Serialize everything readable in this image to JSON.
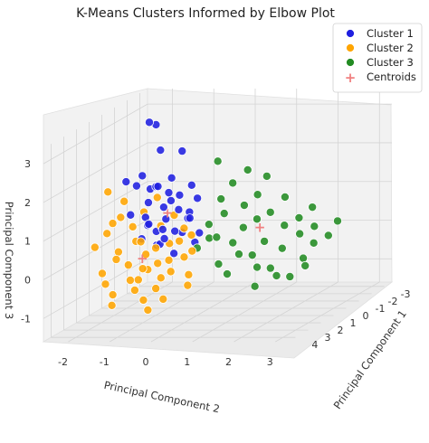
{
  "chart_data": {
    "type": "scatter",
    "title": "K-Means Clusters Informed by Elbow Plot",
    "xlabel": "Principal Component 2",
    "ylabel": "Principal Component 1",
    "zlabel": "Principal Component 3",
    "axis_x_ticks": [
      "-2",
      "-1",
      "0",
      "1",
      "2",
      "3"
    ],
    "axis_y_ticks": [
      "-3",
      "-2",
      "-1",
      "0",
      "1",
      "2",
      "3",
      "4"
    ],
    "axis_z_ticks": [
      "-1",
      "0",
      "1",
      "2",
      "3"
    ],
    "grid": true,
    "legend_position": "top-right",
    "legend": [
      {
        "label": "Cluster 1",
        "color": "#1f1fe0",
        "marker": "circle"
      },
      {
        "label": "Cluster 2",
        "color": "#ffa500",
        "marker": "circle"
      },
      {
        "label": "Cluster 3",
        "color": "#228b22",
        "marker": "circle"
      },
      {
        "label": "Centroids",
        "color": "#f08080",
        "marker": "plus"
      }
    ],
    "series": [
      {
        "name": "Cluster 1",
        "color": "#1f1fe0",
        "points": [
          [
            -1.3,
            0.5,
            3.3
          ],
          [
            -1.2,
            0.3,
            3.2
          ],
          [
            -1.0,
            0.6,
            2.6
          ],
          [
            -0.6,
            0.2,
            2.5
          ],
          [
            -1.8,
            0.7,
            1.8
          ],
          [
            -1.5,
            0.4,
            1.9
          ],
          [
            -1.7,
            0.2,
            1.6
          ],
          [
            -1.4,
            0.1,
            1.5
          ],
          [
            -1.2,
            0.3,
            1.6
          ],
          [
            -1.0,
            0.8,
            1.7
          ],
          [
            -0.8,
            0.6,
            1.5
          ],
          [
            -0.6,
            0.4,
            1.4
          ],
          [
            -0.4,
            0.1,
            1.6
          ],
          [
            -0.2,
            0.3,
            1.3
          ],
          [
            -0.8,
            1.0,
            1.2
          ],
          [
            -0.5,
            0.8,
            1.1
          ],
          [
            -0.3,
            0.6,
            1.0
          ],
          [
            -1.6,
            1.0,
            1.0
          ],
          [
            -1.3,
            0.8,
            0.9
          ],
          [
            -1.1,
            1.2,
            0.8
          ],
          [
            -0.9,
            0.5,
            0.8
          ],
          [
            -0.7,
            1.4,
            0.7
          ],
          [
            -0.5,
            1.1,
            0.6
          ],
          [
            -1.4,
            0.3,
            0.6
          ],
          [
            -1.1,
            0.6,
            0.5
          ],
          [
            -0.2,
            0.9,
            0.9
          ],
          [
            -0.6,
            0.2,
            0.4
          ],
          [
            -0.8,
            1.3,
            0.3
          ],
          [
            -1.0,
            0.9,
            0.2
          ],
          [
            -0.4,
            1.5,
            0.1
          ],
          [
            -1.3,
            1.1,
            0.4
          ],
          [
            -0.2,
            0.5,
            0.2
          ],
          [
            -0.7,
            0.7,
            1.9
          ],
          [
            -0.9,
            0.1,
            1.2
          ],
          [
            0.0,
            0.8,
            0.5
          ],
          [
            -1.2,
            0.9,
            1.3
          ],
          [
            -0.4,
            0.4,
            0.8
          ],
          [
            -0.6,
            1.6,
            0.5
          ]
        ]
      },
      {
        "name": "Cluster 2",
        "color": "#ffa500",
        "points": [
          [
            -2.3,
            0.5,
            1.5
          ],
          [
            -2.0,
            0.2,
            1.2
          ],
          [
            -1.9,
            0.8,
            0.9
          ],
          [
            -2.2,
            0.9,
            0.5
          ],
          [
            -1.7,
            0.5,
            0.6
          ],
          [
            -1.5,
            0.9,
            0.3
          ],
          [
            -1.8,
            1.3,
            0.1
          ],
          [
            -1.5,
            1.5,
            -0.2
          ],
          [
            -1.2,
            1.1,
            0.0
          ],
          [
            -1.0,
            1.6,
            -0.3
          ],
          [
            -0.9,
            1.3,
            0.2
          ],
          [
            -0.7,
            1.8,
            -0.1
          ],
          [
            -0.5,
            2.2,
            -0.4
          ],
          [
            -0.4,
            1.9,
            0.0
          ],
          [
            -0.2,
            2.4,
            -0.2
          ],
          [
            0.0,
            2.0,
            0.1
          ],
          [
            0.2,
            2.3,
            -0.3
          ],
          [
            -1.3,
            2.0,
            -0.5
          ],
          [
            -1.1,
            2.3,
            -0.7
          ],
          [
            -0.8,
            2.6,
            -0.9
          ],
          [
            -0.6,
            2.9,
            -1.1
          ],
          [
            -2.1,
            1.6,
            -0.4
          ],
          [
            -1.9,
            2.0,
            -0.6
          ],
          [
            -1.6,
            2.4,
            -0.8
          ],
          [
            -0.3,
            1.4,
            0.4
          ],
          [
            0.1,
            1.7,
            0.2
          ],
          [
            -0.1,
            1.1,
            0.5
          ],
          [
            -1.4,
            0.6,
            1.0
          ],
          [
            -1.2,
            0.2,
            1.3
          ],
          [
            -0.9,
            0.9,
            0.7
          ],
          [
            -0.7,
            0.5,
            0.9
          ],
          [
            -2.4,
            1.2,
            0.2
          ],
          [
            -1.0,
            2.0,
            -0.2
          ],
          [
            -0.5,
            2.6,
            -0.6
          ],
          [
            -0.2,
            3.0,
            -0.8
          ],
          [
            0.3,
            2.7,
            -0.5
          ],
          [
            -1.7,
            1.8,
            0.0
          ],
          [
            -0.4,
            0.7,
            0.6
          ],
          [
            -2.0,
            1.1,
            0.8
          ],
          [
            -0.8,
            3.0,
            -0.3
          ],
          [
            -1.5,
            2.8,
            -1.0
          ],
          [
            -1.2,
            1.5,
            0.4
          ],
          [
            -0.6,
            1.2,
            0.3
          ]
        ]
      },
      {
        "name": "Cluster 3",
        "color": "#228b22",
        "points": [
          [
            0.2,
            0.0,
            2.2
          ],
          [
            0.8,
            -0.4,
            1.9
          ],
          [
            0.4,
            0.4,
            1.3
          ],
          [
            0.6,
            0.8,
            1.0
          ],
          [
            0.9,
            0.2,
            1.1
          ],
          [
            1.1,
            -0.2,
            1.3
          ],
          [
            1.3,
            0.5,
            0.8
          ],
          [
            1.5,
            0.1,
            0.9
          ],
          [
            1.7,
            -0.4,
            1.2
          ],
          [
            1.9,
            0.3,
            0.6
          ],
          [
            2.1,
            -0.2,
            0.7
          ],
          [
            2.3,
            0.4,
            0.4
          ],
          [
            2.5,
            -0.1,
            0.5
          ],
          [
            2.7,
            0.6,
            0.2
          ],
          [
            2.9,
            0.1,
            0.3
          ],
          [
            0.6,
            1.4,
            0.5
          ],
          [
            0.9,
            1.1,
            0.3
          ],
          [
            1.2,
            1.6,
            0.1
          ],
          [
            1.4,
            1.2,
            0.0
          ],
          [
            1.7,
            1.8,
            -0.2
          ],
          [
            1.9,
            1.4,
            -0.3
          ],
          [
            2.2,
            1.9,
            -0.4
          ],
          [
            2.4,
            1.5,
            -0.5
          ],
          [
            0.2,
            0.7,
            0.7
          ],
          [
            0.3,
            1.0,
            0.4
          ],
          [
            1.0,
            0.6,
            0.6
          ],
          [
            1.6,
            0.9,
            0.3
          ],
          [
            2.0,
            0.8,
            0.1
          ],
          [
            2.6,
            1.1,
            -0.1
          ],
          [
            2.8,
            1.6,
            -0.2
          ],
          [
            0.5,
            -0.2,
            1.6
          ],
          [
            1.2,
            -0.6,
            1.7
          ],
          [
            3.0,
            -0.3,
            0.6
          ],
          [
            0.8,
            1.9,
            -0.1
          ],
          [
            1.1,
            2.2,
            -0.3
          ],
          [
            0.1,
            1.3,
            0.2
          ],
          [
            2.3,
            -0.6,
            0.9
          ],
          [
            1.8,
            2.3,
            -0.6
          ]
        ]
      },
      {
        "name": "Centroids",
        "color": "#f08080",
        "marker": "plus",
        "points": [
          [
            -0.8,
            0.7,
            1.0
          ],
          [
            -1.1,
            1.7,
            0.0
          ],
          [
            1.4,
            0.6,
            0.6
          ]
        ]
      }
    ]
  }
}
